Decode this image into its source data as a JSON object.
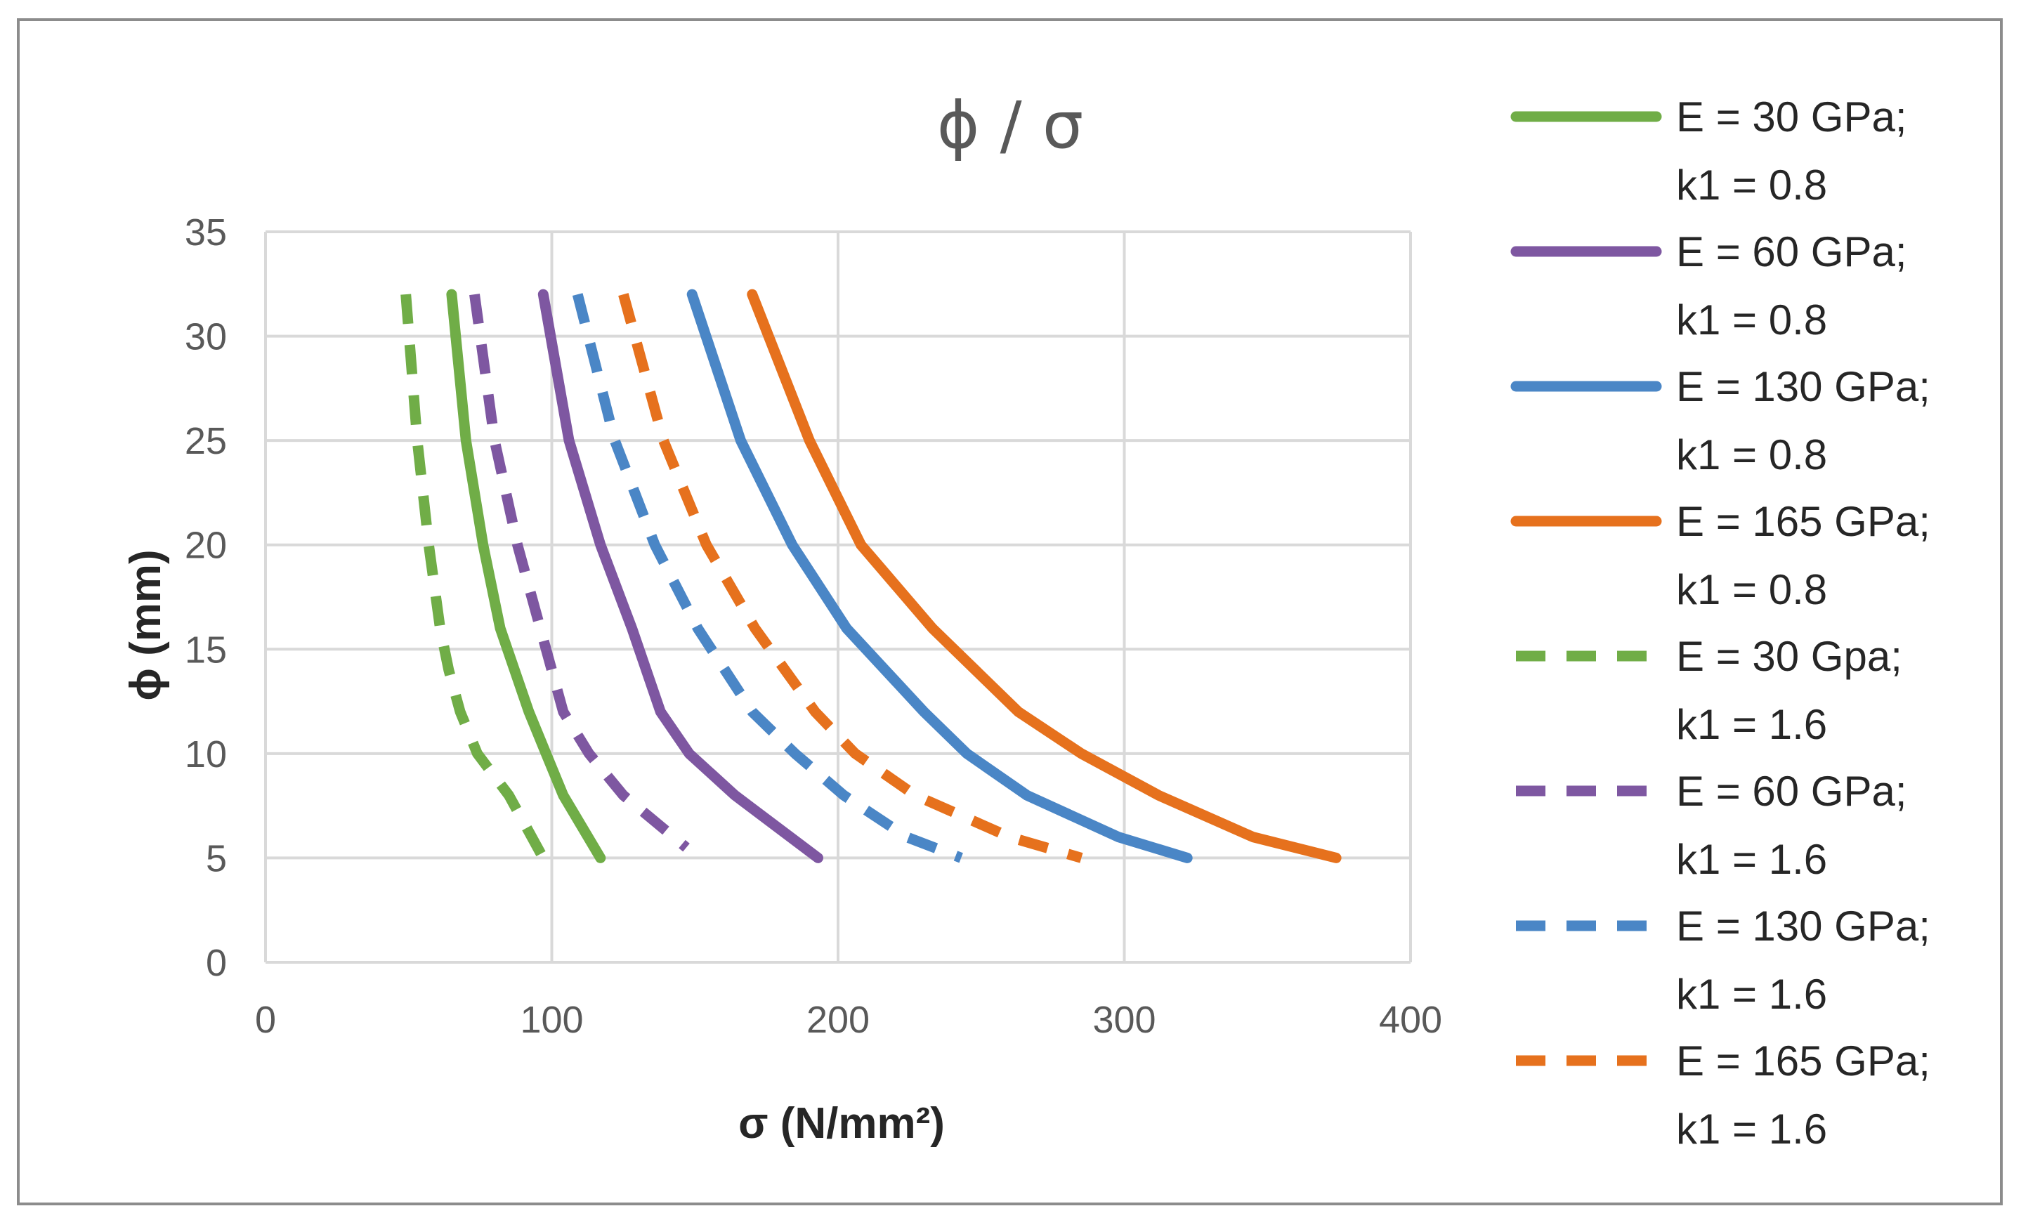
{
  "chart_data": {
    "type": "line",
    "title": "ϕ / σ",
    "xlabel": "σ (N/mm²)",
    "ylabel": "ϕ (mm)",
    "xlim": [
      0,
      400
    ],
    "ylim": [
      0,
      35
    ],
    "xticks": [
      0,
      100,
      200,
      300,
      400
    ],
    "yticks": [
      0,
      5,
      10,
      15,
      20,
      25,
      30,
      35
    ],
    "grid": true,
    "legend_position": "right",
    "series": [
      {
        "name_line1": "E = 30 GPa;",
        "name_line2": "k1 = 0.8",
        "color": "#70AD47",
        "dashed": false,
        "x": [
          65,
          70,
          76,
          82,
          87,
          92,
          98,
          104,
          117
        ],
        "y": [
          32,
          25,
          20,
          16,
          14,
          12,
          10,
          8,
          5
        ]
      },
      {
        "name_line1": "E = 60 GPa;",
        "name_line2": "k1 = 0.8",
        "color": "#7E57A1",
        "dashed": false,
        "x": [
          97,
          106,
          117,
          128,
          138,
          148,
          164,
          193
        ],
        "y": [
          32,
          25,
          20,
          16,
          12,
          10,
          8,
          5
        ]
      },
      {
        "name_line1": "E = 130 GPa;",
        "name_line2": "k1 = 0.8",
        "color": "#4A86C6",
        "dashed": false,
        "x": [
          149,
          166,
          184,
          203,
          230,
          245,
          266,
          298,
          322
        ],
        "y": [
          32,
          25,
          20,
          16,
          12,
          10,
          8,
          6,
          5
        ]
      },
      {
        "name_line1": "E = 165 GPa;",
        "name_line2": "k1 = 0.8",
        "color": "#E6711D",
        "dashed": false,
        "x": [
          170,
          190,
          208,
          233,
          263,
          285,
          312,
          345,
          374
        ],
        "y": [
          32,
          25,
          20,
          16,
          12,
          10,
          8,
          6,
          5
        ]
      },
      {
        "name_line1": "E = 30 Gpa;",
        "name_line2": "k1 = 1.6",
        "color": "#70AD47",
        "dashed": true,
        "x": [
          49,
          53,
          57,
          61,
          64,
          68,
          74,
          85,
          97
        ],
        "y": [
          32,
          25,
          20,
          16,
          14,
          12,
          10,
          8,
          5
        ]
      },
      {
        "name_line1": "E = 60 GPa;",
        "name_line2": "k1 = 1.6",
        "color": "#7E57A1",
        "dashed": true,
        "x": [
          73,
          80,
          88,
          96,
          104,
          113,
          125,
          147
        ],
        "y": [
          32,
          25,
          20,
          16,
          12,
          10,
          8,
          5.5
        ]
      },
      {
        "name_line1": "E = 130 GPa;",
        "name_line2": "k1 = 1.6",
        "color": "#4A86C6",
        "dashed": true,
        "x": [
          109,
          122,
          136,
          151,
          170,
          185,
          202,
          224,
          243
        ],
        "y": [
          32,
          25,
          20,
          16,
          12,
          10,
          8,
          6,
          5
        ]
      },
      {
        "name_line1": "E = 165 GPa;",
        "name_line2": "k1 = 1.6",
        "color": "#E6711D",
        "dashed": true,
        "x": [
          125,
          139,
          154,
          171,
          192,
          206,
          227,
          260,
          285
        ],
        "y": [
          32,
          25,
          20,
          16,
          12,
          10,
          8,
          6,
          5
        ]
      }
    ]
  }
}
